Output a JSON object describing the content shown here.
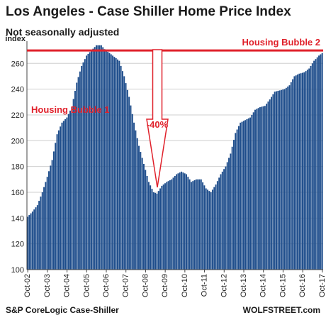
{
  "chart_data": {
    "type": "bar",
    "title": "Los Angeles - Case Shiller Home Price Index",
    "subtitle": "Not seasonally adjusted",
    "ylabel": "index",
    "ylim": [
      100,
      270
    ],
    "y_ticks": [
      100,
      120,
      140,
      160,
      180,
      200,
      220,
      240,
      260
    ],
    "x_tick_labels": [
      "Oct-02",
      "Oct-03",
      "Oct-04",
      "Oct-05",
      "Oct-06",
      "Oct-07",
      "Oct-08",
      "Oct-09",
      "Oct-10",
      "Oct-11",
      "Oct-12",
      "Oct-13",
      "Oct-14",
      "Oct-15",
      "Oct-16",
      "Oct-17"
    ],
    "gridlines": true,
    "bar_color": "#1f4e8c",
    "series_monthly_start": "Oct-02",
    "keyframes": [
      [
        "Oct-02",
        141
      ],
      [
        "Jan-03",
        145
      ],
      [
        "Apr-03",
        150
      ],
      [
        "Jul-03",
        160
      ],
      [
        "Oct-03",
        172
      ],
      [
        "Jan-04",
        185
      ],
      [
        "Apr-04",
        205
      ],
      [
        "Jul-04",
        214
      ],
      [
        "Oct-04",
        218
      ],
      [
        "Jan-05",
        226
      ],
      [
        "Apr-05",
        245
      ],
      [
        "Jul-05",
        258
      ],
      [
        "Oct-05",
        266
      ],
      [
        "Jan-06",
        270
      ],
      [
        "Apr-06",
        274
      ],
      [
        "Jul-06",
        274
      ],
      [
        "Sep-06",
        271
      ],
      [
        "Dec-06",
        268
      ],
      [
        "Mar-07",
        265
      ],
      [
        "Jun-07",
        262
      ],
      [
        "Sep-07",
        250
      ],
      [
        "Dec-07",
        234
      ],
      [
        "Mar-08",
        214
      ],
      [
        "Jun-08",
        196
      ],
      [
        "Sep-08",
        182
      ],
      [
        "Dec-08",
        168
      ],
      [
        "Mar-09",
        160
      ],
      [
        "May-09",
        159
      ],
      [
        "Aug-09",
        165
      ],
      [
        "Nov-09",
        168
      ],
      [
        "Feb-10",
        170
      ],
      [
        "May-10",
        174
      ],
      [
        "Aug-10",
        176
      ],
      [
        "Nov-10",
        174
      ],
      [
        "Feb-11",
        168
      ],
      [
        "May-11",
        170
      ],
      [
        "Aug-11",
        170
      ],
      [
        "Nov-11",
        163
      ],
      [
        "Feb-12",
        160
      ],
      [
        "May-12",
        166
      ],
      [
        "Aug-12",
        174
      ],
      [
        "Nov-12",
        180
      ],
      [
        "Feb-13",
        190
      ],
      [
        "May-13",
        206
      ],
      [
        "Aug-13",
        214
      ],
      [
        "Nov-13",
        216
      ],
      [
        "Feb-14",
        218
      ],
      [
        "May-14",
        224
      ],
      [
        "Aug-14",
        226
      ],
      [
        "Nov-14",
        227
      ],
      [
        "Feb-15",
        232
      ],
      [
        "May-15",
        238
      ],
      [
        "Aug-15",
        239
      ],
      [
        "Nov-15",
        240
      ],
      [
        "Feb-16",
        243
      ],
      [
        "May-16",
        250
      ],
      [
        "Aug-16",
        252
      ],
      [
        "Nov-16",
        253
      ],
      [
        "Feb-17",
        256
      ],
      [
        "May-17",
        262
      ],
      [
        "Aug-17",
        266
      ],
      [
        "Oct-17",
        268
      ]
    ],
    "reference_line": {
      "value": 270,
      "label": "Housing Bubble 2",
      "color": "#e0212b"
    },
    "annotations": [
      {
        "text": "Housing Bubble 1",
        "color": "#e0212b"
      },
      {
        "text": "-40%",
        "color": "#e0212b"
      }
    ]
  },
  "footer": {
    "source": "S&P CoreLogic Case-Shiller",
    "brand": "WOLFSTREET.com"
  }
}
